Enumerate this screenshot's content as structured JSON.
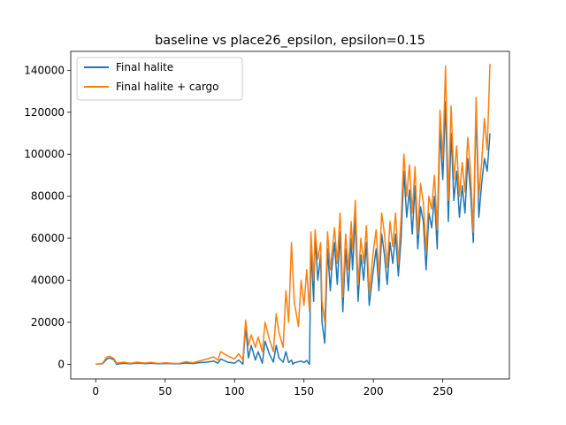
{
  "chart_data": {
    "type": "line",
    "title": "baseline vs place26_epsilon, epsilon=0.15",
    "xlabel": "",
    "ylabel": "",
    "xlim": [
      -18,
      298
    ],
    "ylim": [
      -7000,
      149000
    ],
    "xticks": [
      0,
      50,
      100,
      150,
      200,
      250
    ],
    "yticks": [
      0,
      20000,
      40000,
      60000,
      80000,
      100000,
      120000,
      140000
    ],
    "grid": false,
    "legend_position": "upper-left",
    "series": [
      {
        "name": "Final halite",
        "color": "#1f77b4",
        "points": [
          [
            0,
            0
          ],
          [
            5,
            300
          ],
          [
            8,
            2500
          ],
          [
            10,
            3000
          ],
          [
            13,
            2200
          ],
          [
            15,
            0
          ],
          [
            20,
            500
          ],
          [
            25,
            200
          ],
          [
            30,
            600
          ],
          [
            35,
            300
          ],
          [
            40,
            500
          ],
          [
            45,
            200
          ],
          [
            50,
            400
          ],
          [
            55,
            300
          ],
          [
            60,
            200
          ],
          [
            65,
            600
          ],
          [
            70,
            300
          ],
          [
            75,
            800
          ],
          [
            80,
            1000
          ],
          [
            85,
            1500
          ],
          [
            88,
            500
          ],
          [
            90,
            2500
          ],
          [
            95,
            1000
          ],
          [
            100,
            500
          ],
          [
            103,
            2000
          ],
          [
            106,
            0
          ],
          [
            108,
            18000
          ],
          [
            110,
            3000
          ],
          [
            112,
            9000
          ],
          [
            115,
            2000
          ],
          [
            117,
            6000
          ],
          [
            120,
            500
          ],
          [
            122,
            11000
          ],
          [
            125,
            5000
          ],
          [
            128,
            1000
          ],
          [
            130,
            9000
          ],
          [
            132,
            3000
          ],
          [
            135,
            1000
          ],
          [
            137,
            6000
          ],
          [
            139,
            800
          ],
          [
            141,
            2000
          ],
          [
            142,
            0
          ],
          [
            143,
            700
          ],
          [
            146,
            1200
          ],
          [
            148,
            1500
          ],
          [
            150,
            800
          ],
          [
            152,
            1800
          ],
          [
            154,
            0
          ],
          [
            155,
            55000
          ],
          [
            157,
            30000
          ],
          [
            158,
            61000
          ],
          [
            160,
            40000
          ],
          [
            162,
            52000
          ],
          [
            163,
            20000
          ],
          [
            165,
            10000
          ],
          [
            167,
            55000
          ],
          [
            169,
            35000
          ],
          [
            170,
            45000
          ],
          [
            172,
            58000
          ],
          [
            174,
            38000
          ],
          [
            176,
            63000
          ],
          [
            178,
            25000
          ],
          [
            180,
            55000
          ],
          [
            182,
            35000
          ],
          [
            184,
            60000
          ],
          [
            185,
            45000
          ],
          [
            187,
            70000
          ],
          [
            189,
            30000
          ],
          [
            191,
            52000
          ],
          [
            193,
            40000
          ],
          [
            195,
            58000
          ],
          [
            197,
            28000
          ],
          [
            200,
            45000
          ],
          [
            202,
            55000
          ],
          [
            204,
            35000
          ],
          [
            206,
            62000
          ],
          [
            208,
            52000
          ],
          [
            210,
            38000
          ],
          [
            212,
            58000
          ],
          [
            214,
            48000
          ],
          [
            216,
            62000
          ],
          [
            218,
            42000
          ],
          [
            220,
            60000
          ],
          [
            222,
            92000
          ],
          [
            224,
            70000
          ],
          [
            226,
            83000
          ],
          [
            228,
            62000
          ],
          [
            230,
            85000
          ],
          [
            232,
            55000
          ],
          [
            234,
            75000
          ],
          [
            236,
            68000
          ],
          [
            238,
            45000
          ],
          [
            240,
            72000
          ],
          [
            242,
            65000
          ],
          [
            244,
            80000
          ],
          [
            246,
            55000
          ],
          [
            248,
            112000
          ],
          [
            250,
            88000
          ],
          [
            252,
            125000
          ],
          [
            254,
            68000
          ],
          [
            256,
            110000
          ],
          [
            258,
            78000
          ],
          [
            260,
            92000
          ],
          [
            262,
            70000
          ],
          [
            264,
            85000
          ],
          [
            266,
            72000
          ],
          [
            268,
            98000
          ],
          [
            270,
            82000
          ],
          [
            272,
            58000
          ],
          [
            274,
            122000
          ],
          [
            276,
            70000
          ],
          [
            278,
            86000
          ],
          [
            280,
            98000
          ],
          [
            282,
            92000
          ],
          [
            284,
            110000
          ]
        ]
      },
      {
        "name": "Final halite + cargo",
        "color": "#ff7f0e",
        "points": [
          [
            0,
            0
          ],
          [
            5,
            500
          ],
          [
            8,
            3500
          ],
          [
            10,
            3800
          ],
          [
            13,
            2800
          ],
          [
            15,
            500
          ],
          [
            20,
            1000
          ],
          [
            25,
            500
          ],
          [
            30,
            1000
          ],
          [
            35,
            600
          ],
          [
            40,
            900
          ],
          [
            45,
            400
          ],
          [
            50,
            700
          ],
          [
            55,
            500
          ],
          [
            60,
            400
          ],
          [
            65,
            1200
          ],
          [
            70,
            700
          ],
          [
            75,
            1600
          ],
          [
            80,
            2500
          ],
          [
            85,
            3500
          ],
          [
            88,
            2000
          ],
          [
            90,
            6000
          ],
          [
            95,
            4000
          ],
          [
            100,
            2500
          ],
          [
            103,
            5000
          ],
          [
            106,
            2000
          ],
          [
            108,
            21000
          ],
          [
            110,
            9000
          ],
          [
            112,
            14000
          ],
          [
            115,
            8000
          ],
          [
            117,
            13000
          ],
          [
            120,
            6000
          ],
          [
            122,
            20000
          ],
          [
            125,
            12000
          ],
          [
            128,
            6000
          ],
          [
            130,
            24000
          ],
          [
            132,
            15000
          ],
          [
            135,
            8000
          ],
          [
            137,
            35000
          ],
          [
            139,
            20000
          ],
          [
            141,
            58000
          ],
          [
            143,
            30000
          ],
          [
            146,
            18000
          ],
          [
            148,
            40000
          ],
          [
            150,
            28000
          ],
          [
            152,
            45000
          ],
          [
            154,
            25000
          ],
          [
            155,
            63000
          ],
          [
            157,
            40000
          ],
          [
            158,
            64000
          ],
          [
            160,
            50000
          ],
          [
            162,
            58000
          ],
          [
            163,
            30000
          ],
          [
            165,
            20000
          ],
          [
            167,
            63000
          ],
          [
            169,
            45000
          ],
          [
            170,
            52000
          ],
          [
            172,
            65000
          ],
          [
            174,
            48000
          ],
          [
            176,
            72000
          ],
          [
            178,
            32000
          ],
          [
            180,
            62000
          ],
          [
            182,
            45000
          ],
          [
            184,
            68000
          ],
          [
            185,
            55000
          ],
          [
            187,
            78000
          ],
          [
            189,
            38000
          ],
          [
            191,
            60000
          ],
          [
            193,
            48000
          ],
          [
            195,
            66000
          ],
          [
            197,
            34000
          ],
          [
            200,
            54000
          ],
          [
            202,
            64000
          ],
          [
            204,
            42000
          ],
          [
            206,
            72000
          ],
          [
            208,
            62000
          ],
          [
            210,
            46000
          ],
          [
            212,
            68000
          ],
          [
            214,
            56000
          ],
          [
            216,
            72000
          ],
          [
            218,
            48000
          ],
          [
            220,
            70000
          ],
          [
            222,
            100000
          ],
          [
            224,
            80000
          ],
          [
            226,
            95000
          ],
          [
            228,
            72000
          ],
          [
            230,
            94000
          ],
          [
            232,
            62000
          ],
          [
            234,
            86000
          ],
          [
            236,
            77000
          ],
          [
            238,
            54000
          ],
          [
            240,
            80000
          ],
          [
            242,
            74000
          ],
          [
            244,
            90000
          ],
          [
            246,
            64000
          ],
          [
            248,
            121000
          ],
          [
            250,
            98000
          ],
          [
            252,
            142000
          ],
          [
            254,
            78000
          ],
          [
            256,
            123000
          ],
          [
            258,
            88000
          ],
          [
            260,
            104000
          ],
          [
            262,
            80000
          ],
          [
            264,
            96000
          ],
          [
            266,
            82000
          ],
          [
            268,
            108000
          ],
          [
            270,
            92000
          ],
          [
            272,
            63000
          ],
          [
            274,
            127000
          ],
          [
            276,
            80000
          ],
          [
            278,
            96000
          ],
          [
            280,
            117000
          ],
          [
            282,
            102000
          ],
          [
            284,
            143000
          ]
        ]
      }
    ]
  }
}
